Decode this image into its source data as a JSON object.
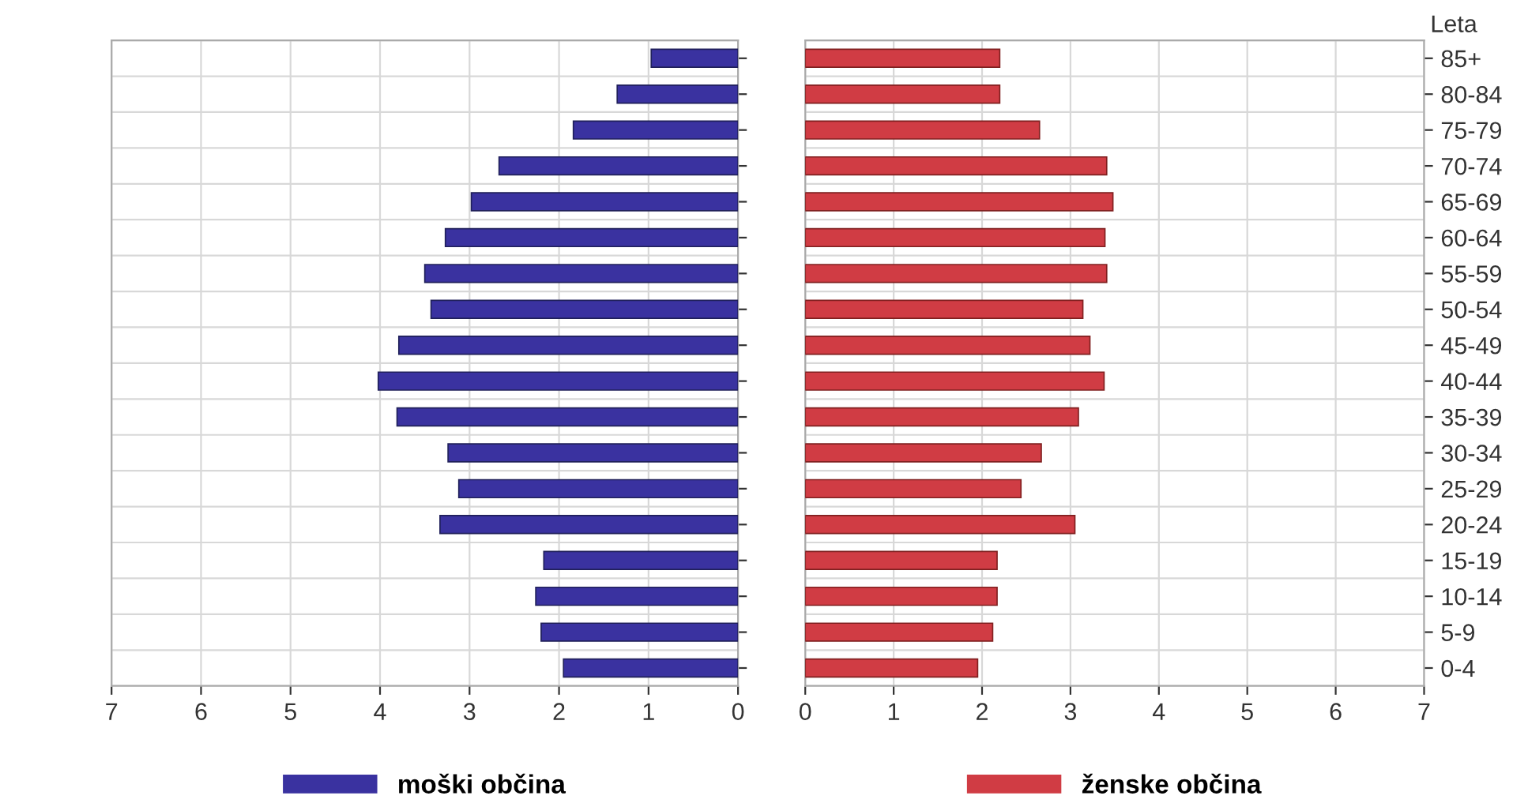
{
  "chart_data": [
    {
      "type": "bar",
      "orientation": "horizontal",
      "categories": [
        null,
        null,
        null,
        null,
        null,
        null,
        null,
        null,
        null,
        null,
        null,
        null,
        null,
        null,
        null,
        null,
        null,
        null
      ],
      "series": [
        {
          "name": "moški občina",
          "color": "#3a32a0",
          "values": [
            0.97,
            1.35,
            1.84,
            2.67,
            2.98,
            3.27,
            3.5,
            3.43,
            3.79,
            4.02,
            3.81,
            3.24,
            3.12,
            3.33,
            2.17,
            2.26,
            2.2,
            1.95
          ]
        }
      ],
      "xlim": [
        7,
        0
      ],
      "xticks": [
        7,
        6,
        5,
        4,
        3,
        2,
        1,
        0
      ],
      "grid": true,
      "legend": "bottom",
      "tick_labels": "x"
    },
    {
      "type": "bar",
      "orientation": "horizontal",
      "ylabel": "Leta",
      "categories": [
        "85+",
        "80-84",
        "75-79",
        "70-74",
        "65-69",
        "60-64",
        "55-59",
        "50-54",
        "45-49",
        "40-44",
        "35-39",
        "30-34",
        "25-29",
        "20-24",
        "15-19",
        "10-14",
        "5-9",
        "0-4"
      ],
      "series": [
        {
          "name": "ženske občina",
          "color": "#d03c44",
          "values": [
            2.2,
            2.2,
            2.65,
            3.41,
            3.48,
            3.39,
            3.41,
            3.14,
            3.22,
            3.38,
            3.09,
            2.67,
            2.44,
            3.05,
            2.17,
            2.17,
            2.12,
            1.95
          ]
        }
      ],
      "xlim": [
        0,
        7
      ],
      "xticks": [
        0,
        1,
        2,
        3,
        4,
        5,
        6,
        7
      ],
      "grid": true,
      "legend": "bottom"
    }
  ]
}
